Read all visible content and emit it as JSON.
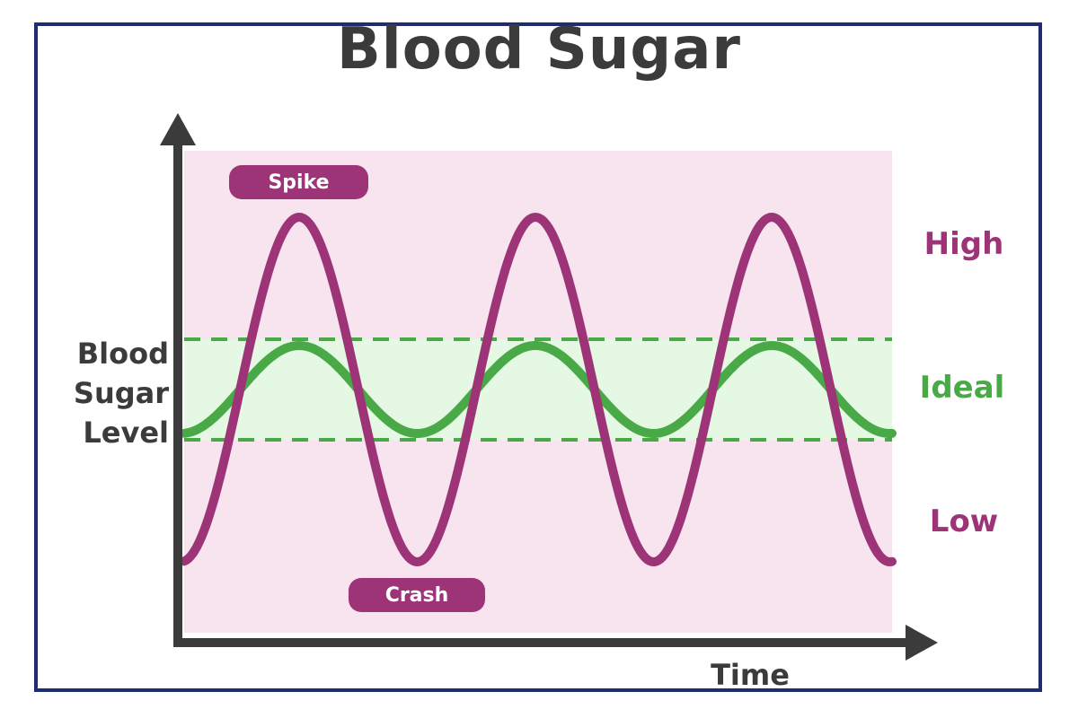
{
  "title": "Blood Sugar",
  "y_axis_label": [
    "Blood",
    "Sugar",
    "Level"
  ],
  "x_axis_label": "Time",
  "zones": {
    "high": "High",
    "ideal": "Ideal",
    "low": "Low"
  },
  "callouts": {
    "spike": "Spike",
    "crash": "Crash"
  },
  "colors": {
    "unstable_curve": "#9d3477",
    "stable_curve": "#4aa947",
    "background": "#f8e4ef",
    "ideal_band": "#e4f8e4",
    "axis": "#3b3b3b",
    "frame": "#1f2c6e"
  },
  "curves": {
    "unstable_peaks": 3,
    "stable_peaks": 3
  }
}
